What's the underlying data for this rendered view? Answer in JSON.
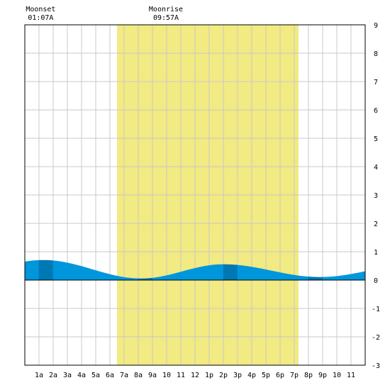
{
  "chart_data": {
    "type": "area",
    "title": "",
    "xlabel": "",
    "ylabel": "",
    "x_tick_labels": [
      "1a",
      "2a",
      "3a",
      "4a",
      "5a",
      "6a",
      "7a",
      "8a",
      "9a",
      "10",
      "11",
      "12",
      "1p",
      "2p",
      "3p",
      "4p",
      "5p",
      "6p",
      "7p",
      "8p",
      "9p",
      "10",
      "11"
    ],
    "y_tick_labels": [
      "-3",
      "-2",
      "-1",
      "0",
      "1",
      "2",
      "3",
      "4",
      "5",
      "6",
      "7",
      "8",
      "9"
    ],
    "xlim": [
      0,
      24
    ],
    "ylim": [
      -3,
      9
    ],
    "grid": true,
    "daylight": {
      "start_hour": 6.5,
      "end_hour": 19.3,
      "color": "#f2ea82"
    },
    "annotations": [
      {
        "label": "Moonset",
        "time": "01:07A",
        "hour": 1.12
      },
      {
        "label": "Moonrise",
        "time": "09:57A",
        "hour": 9.95
      }
    ],
    "tide_extremes": [
      {
        "hour": 1.3,
        "height": 0.7
      },
      {
        "hour": 8.2,
        "height": 0.05
      },
      {
        "hour": 14.0,
        "height": 0.55
      },
      {
        "hour": 20.8,
        "height": 0.1
      }
    ],
    "colors": {
      "tide_light": "#0096dc",
      "tide_dark": "#0078b4",
      "grid": "#c8c8c8",
      "border": "#000000"
    }
  }
}
